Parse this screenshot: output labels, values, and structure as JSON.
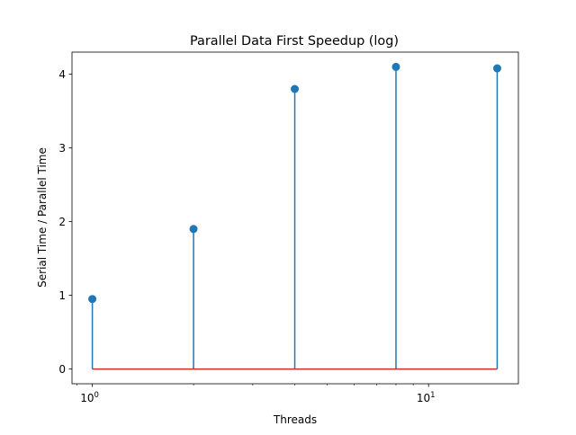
{
  "chart_data": {
    "type": "stem",
    "title": "Parallel Data First Speedup (log)",
    "xlabel": "Threads",
    "ylabel": "Serial Time / Parallel Time",
    "x_scale": "log",
    "xlim": [
      0.87,
      18.5
    ],
    "ylim": [
      -0.2,
      4.3
    ],
    "x": [
      1,
      2,
      4,
      8,
      16
    ],
    "values": [
      0.95,
      1.9,
      3.8,
      4.1,
      4.08
    ],
    "baseline": 0,
    "x_ticks": [
      {
        "value": 1,
        "base": "10",
        "exp": "0"
      },
      {
        "value": 10,
        "base": "10",
        "exp": "1"
      }
    ],
    "y_ticks": [
      {
        "value": 0,
        "label": "0"
      },
      {
        "value": 1,
        "label": "1"
      },
      {
        "value": 2,
        "label": "2"
      },
      {
        "value": 3,
        "label": "3"
      },
      {
        "value": 4,
        "label": "4"
      }
    ],
    "grid": false,
    "colors": {
      "stem": "#1f77b4",
      "marker": "#1f77b4",
      "baseline": "#d62728"
    }
  }
}
